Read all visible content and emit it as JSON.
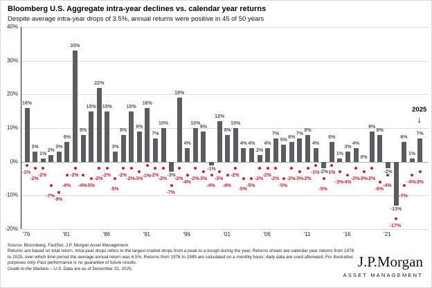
{
  "header": {
    "title": "Bloomberg U.S. Aggregate intra-year declines vs. calendar year returns",
    "subtitle": "Despite average intra-year drops of 3.5%, annual returns were positive in 45 of 50 years"
  },
  "chart_data": {
    "type": "bar",
    "title": "Bloomberg U.S. Aggregate intra-year declines vs. calendar year returns",
    "subtitle": "Despite average intra-year drops of 3.5%, annual returns were positive in 45 of 50 years",
    "x": [
      1976,
      1977,
      1978,
      1979,
      1980,
      1981,
      1982,
      1983,
      1984,
      1985,
      1986,
      1987,
      1988,
      1989,
      1990,
      1991,
      1992,
      1993,
      1994,
      1995,
      1996,
      1997,
      1998,
      1999,
      2000,
      2001,
      2002,
      2003,
      2004,
      2005,
      2006,
      2007,
      2008,
      2009,
      2010,
      2011,
      2012,
      2013,
      2014,
      2015,
      2016,
      2017,
      2018,
      2019,
      2020,
      2021,
      2022,
      2023,
      2024,
      2025
    ],
    "series": [
      {
        "name": "Calendar year return",
        "style": "bar",
        "color": "#595d5f",
        "values": [
          16,
          3,
          1,
          2,
          3,
          6,
          33,
          8,
          15,
          22,
          15,
          3,
          8,
          15,
          9,
          16,
          7,
          10,
          -3,
          19,
          4,
          10,
          9,
          -1,
          12,
          8,
          10,
          4,
          4,
          2,
          4,
          7,
          5,
          6,
          7,
          8,
          4,
          -2,
          6,
          1,
          3,
          4,
          0,
          9,
          8,
          -2,
          -13,
          6,
          1,
          7
        ]
      },
      {
        "name": "Intra-year decline",
        "style": "dot",
        "color": "#be2431",
        "values": [
          -1,
          -2,
          -2,
          -7,
          -9,
          -4,
          -2,
          -4,
          -5,
          -2,
          -2,
          -5,
          -2,
          -2,
          -3,
          -1,
          -2,
          -2,
          -7,
          -2,
          -4,
          -2,
          -3,
          -4,
          -3,
          -4,
          -2,
          -5,
          -5,
          -2,
          -2,
          -2,
          -5,
          -2,
          -3,
          -2,
          -1,
          -5,
          -1,
          -3,
          -4,
          -2,
          -3,
          -2,
          -6,
          -4,
          -17,
          -7,
          -4,
          -3
        ]
      }
    ],
    "ylim": [
      -20,
      40
    ],
    "y_ticks": [
      40,
      30,
      20,
      10,
      0,
      -10,
      -20
    ],
    "y_tick_labels": [
      "40%",
      "30%",
      "20%",
      "10%",
      "0%",
      "-10%",
      "-20%"
    ],
    "x_tick_years": [
      1976,
      1981,
      1986,
      1991,
      1996,
      2001,
      2006,
      2011,
      2016,
      2021
    ],
    "x_tick_labels": [
      "'76",
      "'81",
      "'86",
      "'91",
      "'96",
      "'01",
      "'06",
      "'11",
      "'16",
      "'21"
    ],
    "grid": true,
    "legend": "none",
    "annotation": {
      "label": "2025",
      "arrow": "↓",
      "year": 2025
    }
  },
  "footnote": {
    "source_line": "Source: Bloomberg, FactSet, J.P. Morgan Asset Management.",
    "body": "Returns are based on total return. Intra-year drops refers to the largest market drops from a peak to a trough during the year. Returns shown are calendar year returns from 1976 to 2025, over which time period the average annual return was 6.5%. Returns from 1976 to 1989 are calculated on a monthly basis; daily data are used afterward. For illustrative purposes only. Past performance is no guarantee of future results.",
    "gtm_italic": "Guide to the Markets – U.S.",
    "gtm_rest": " Data are as of December 31, 2025."
  },
  "logo": {
    "name": "J.P.Morgan",
    "tagline": "ASSET MANAGEMENT"
  }
}
